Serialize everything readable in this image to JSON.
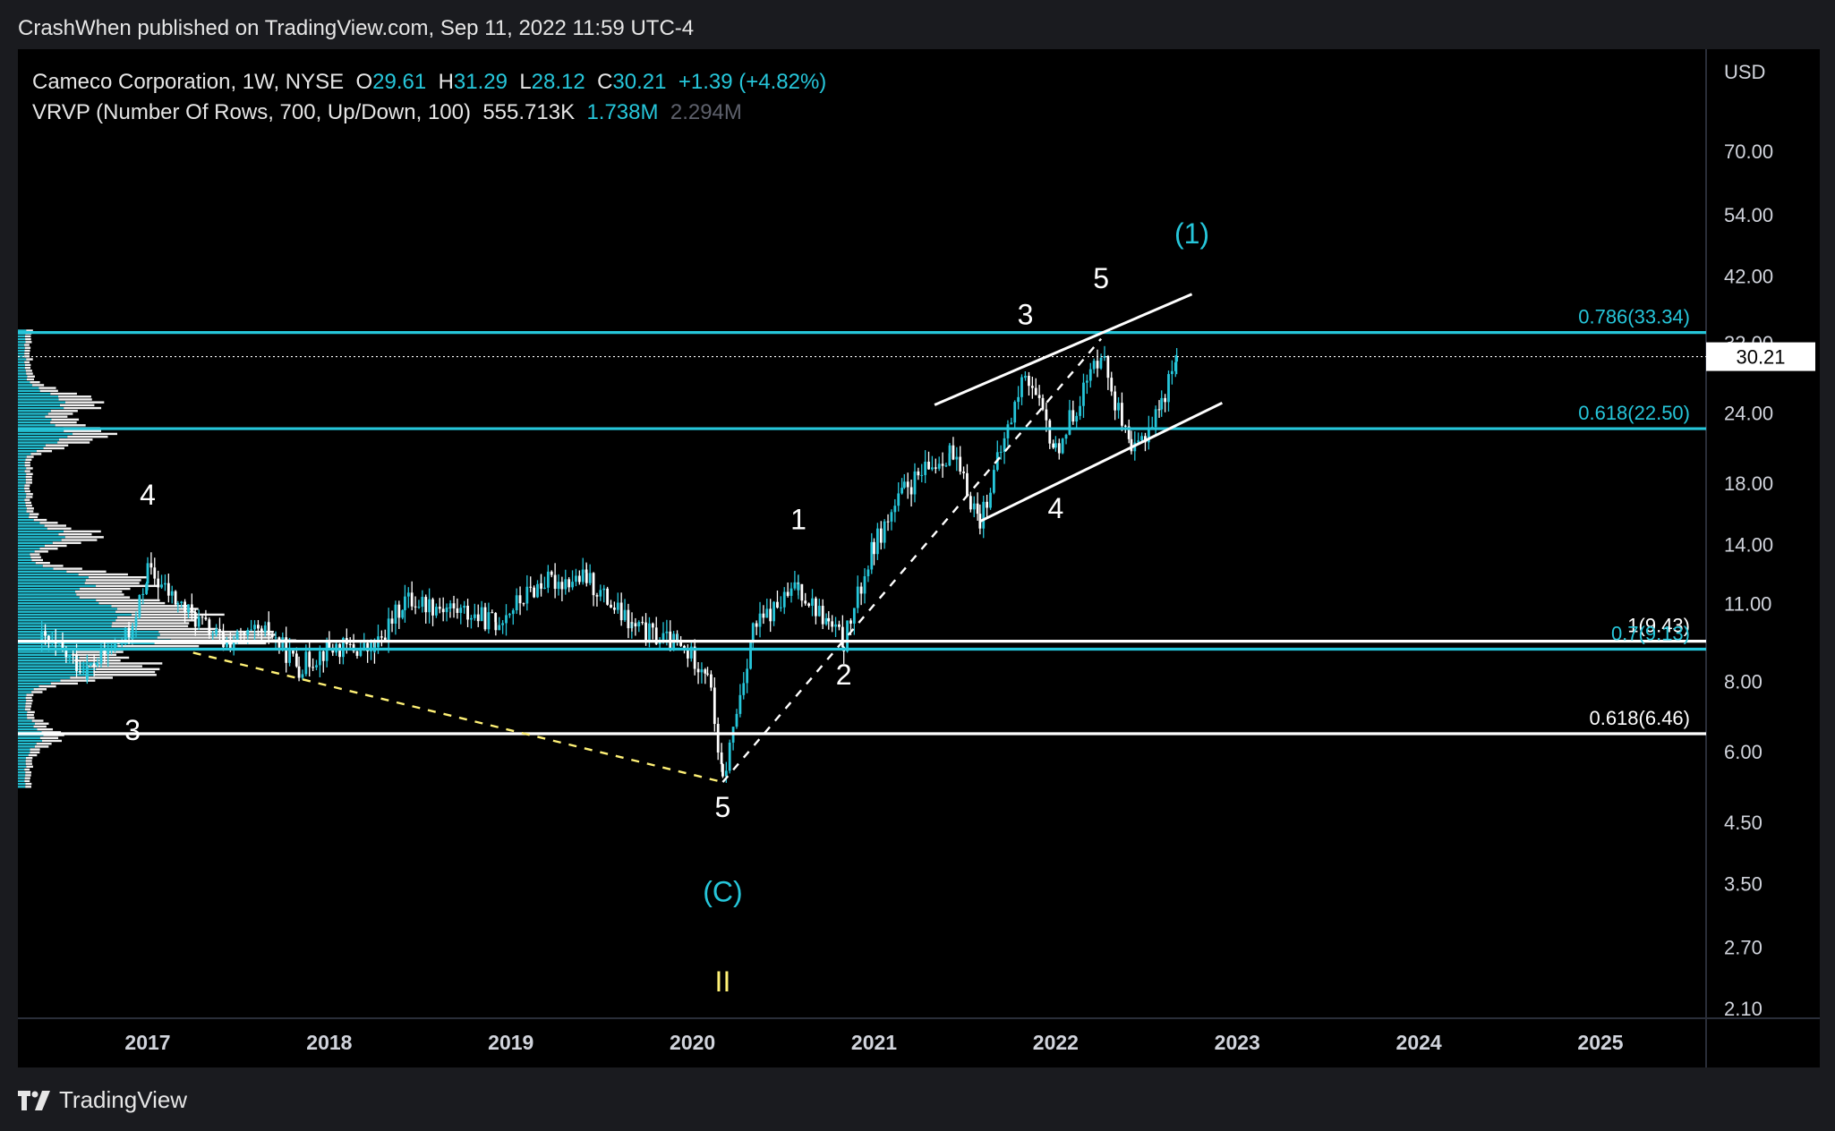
{
  "header": {
    "published_line": "CrashWhen published on TradingView.com, Sep 11, 2022 11:59 UTC-4"
  },
  "legend": {
    "symbol": "Cameco Corporation, 1W, NYSE",
    "o_label": "O",
    "o_value": "29.61",
    "h_label": "H",
    "h_value": "31.29",
    "l_label": "L",
    "l_value": "28.12",
    "c_label": "C",
    "c_value": "30.21",
    "change": "+1.39 (+4.82%)",
    "vrvp_label": "VRVP (Number Of Rows, 700, Up/Down, 100)",
    "vrvp_v1": "555.713K",
    "vrvp_v2": "1.738M",
    "vrvp_v3": "2.294M"
  },
  "footer": {
    "brand": "TradingView"
  },
  "colors": {
    "cyan": "#26c6da",
    "white": "#ffffff",
    "yellow": "#fff176",
    "wave_label": "#ffffff",
    "background": "#000000"
  },
  "chart_data": {
    "type": "candlestick",
    "scale": "log",
    "currency_label": "USD",
    "price_ticks": [
      "70.00",
      "54.00",
      "42.00",
      "32.00",
      "24.00",
      "18.00",
      "14.00",
      "11.00",
      "8.00",
      "6.00",
      "4.50",
      "3.50",
      "2.70",
      "2.10"
    ],
    "x_ticks": [
      "2017",
      "2018",
      "2019",
      "2020",
      "2021",
      "2022",
      "2023",
      "2024",
      "2025"
    ],
    "last_price": "30.21",
    "ylim": [
      1.8,
      105
    ],
    "price_series": [
      {
        "date": "2016-06",
        "price": 9.5
      },
      {
        "date": "2016-09",
        "price": 8.4
      },
      {
        "date": "2016-12",
        "price": 9.8
      },
      {
        "date": "2017-01",
        "price": 12.6
      },
      {
        "date": "2017-03",
        "price": 11.0
      },
      {
        "date": "2017-06",
        "price": 9.4
      },
      {
        "date": "2017-09",
        "price": 9.8
      },
      {
        "date": "2017-11",
        "price": 8.5
      },
      {
        "date": "2018-01",
        "price": 9.2
      },
      {
        "date": "2018-04",
        "price": 9.1
      },
      {
        "date": "2018-06",
        "price": 11.2
      },
      {
        "date": "2018-09",
        "price": 10.8
      },
      {
        "date": "2018-12",
        "price": 10.2
      },
      {
        "date": "2019-03",
        "price": 12.0
      },
      {
        "date": "2019-06",
        "price": 12.2
      },
      {
        "date": "2019-09",
        "price": 10.0
      },
      {
        "date": "2019-12",
        "price": 9.3
      },
      {
        "date": "2020-02",
        "price": 8.4
      },
      {
        "date": "2020-03",
        "price": 5.3
      },
      {
        "date": "2020-05",
        "price": 9.9
      },
      {
        "date": "2020-08",
        "price": 11.8
      },
      {
        "date": "2020-10",
        "price": 10.1
      },
      {
        "date": "2020-11",
        "price": 9.4
      },
      {
        "date": "2021-01",
        "price": 14.0
      },
      {
        "date": "2021-03",
        "price": 17.5
      },
      {
        "date": "2021-06",
        "price": 20.5
      },
      {
        "date": "2021-08",
        "price": 15.5
      },
      {
        "date": "2021-11",
        "price": 28.5
      },
      {
        "date": "2022-01",
        "price": 20.5
      },
      {
        "date": "2022-04",
        "price": 31.0
      },
      {
        "date": "2022-06",
        "price": 20.0
      },
      {
        "date": "2022-08",
        "price": 25.0
      },
      {
        "date": "2022-09",
        "price": 30.21
      }
    ],
    "horizontal_levels": [
      {
        "label": "0.786(33.34)",
        "price": 33.34,
        "color": "#26c6da"
      },
      {
        "label": "0.618(22.50)",
        "price": 22.5,
        "color": "#26c6da"
      },
      {
        "label": "1(9.43)",
        "price": 9.43,
        "color": "#ffffff"
      },
      {
        "label": "0.7(9.13)",
        "price": 9.13,
        "color": "#26c6da"
      },
      {
        "label": "0.618(6.46)",
        "price": 6.46,
        "color": "#ffffff"
      }
    ],
    "wave_labels": [
      {
        "text": "4",
        "date": "2017-01",
        "price": 16.5,
        "color": "#ffffff"
      },
      {
        "text": "3",
        "date": "2016-12",
        "price": 6.3,
        "color": "#ffffff"
      },
      {
        "text": "5",
        "date": "2020-03",
        "price": 4.6,
        "color": "#ffffff"
      },
      {
        "text": "(C)",
        "date": "2020-03",
        "price": 3.25,
        "color": "#26c6da"
      },
      {
        "text": "II",
        "date": "2020-03",
        "price": 2.25,
        "color": "#fff176"
      },
      {
        "text": "1",
        "date": "2020-08",
        "price": 14.9,
        "color": "#ffffff"
      },
      {
        "text": "2",
        "date": "2020-11",
        "price": 7.9,
        "color": "#ffffff"
      },
      {
        "text": "3",
        "date": "2021-11",
        "price": 34.5,
        "color": "#ffffff"
      },
      {
        "text": "4",
        "date": "2022-01",
        "price": 15.6,
        "color": "#ffffff"
      },
      {
        "text": "5",
        "date": "2022-04",
        "price": 40.0,
        "color": "#ffffff"
      },
      {
        "text": "(1)",
        "date": "2022-10",
        "price": 48.0,
        "color": "#26c6da"
      }
    ],
    "trendlines": [
      {
        "from": {
          "date": "2017-04",
          "price": 9.0
        },
        "to": {
          "date": "2020-03",
          "price": 5.3
        },
        "style": "dashed",
        "color": "#fff176"
      },
      {
        "from": {
          "date": "2020-03",
          "price": 5.3
        },
        "to": {
          "date": "2022-04",
          "price": 32.5
        },
        "style": "dashed",
        "color": "#ffffff"
      },
      {
        "from": {
          "date": "2021-05",
          "price": 24.8
        },
        "to": {
          "date": "2022-10",
          "price": 39.0
        },
        "style": "solid",
        "color": "#ffffff"
      },
      {
        "from": {
          "date": "2021-08",
          "price": 15.4
        },
        "to": {
          "date": "2022-12",
          "price": 25.0
        },
        "style": "solid",
        "color": "#ffffff"
      }
    ],
    "volume_profile": {
      "side": "left",
      "price_range": [
        5.2,
        34.0
      ],
      "peaks": [
        {
          "price": 9.6,
          "relative": 1.0
        },
        {
          "price": 10.7,
          "relative": 0.62
        },
        {
          "price": 12.0,
          "relative": 0.45
        },
        {
          "price": 8.4,
          "relative": 0.5
        },
        {
          "price": 14.5,
          "relative": 0.25
        },
        {
          "price": 22.0,
          "relative": 0.32
        },
        {
          "price": 25.0,
          "relative": 0.28
        },
        {
          "price": 6.4,
          "relative": 0.12
        }
      ]
    }
  }
}
